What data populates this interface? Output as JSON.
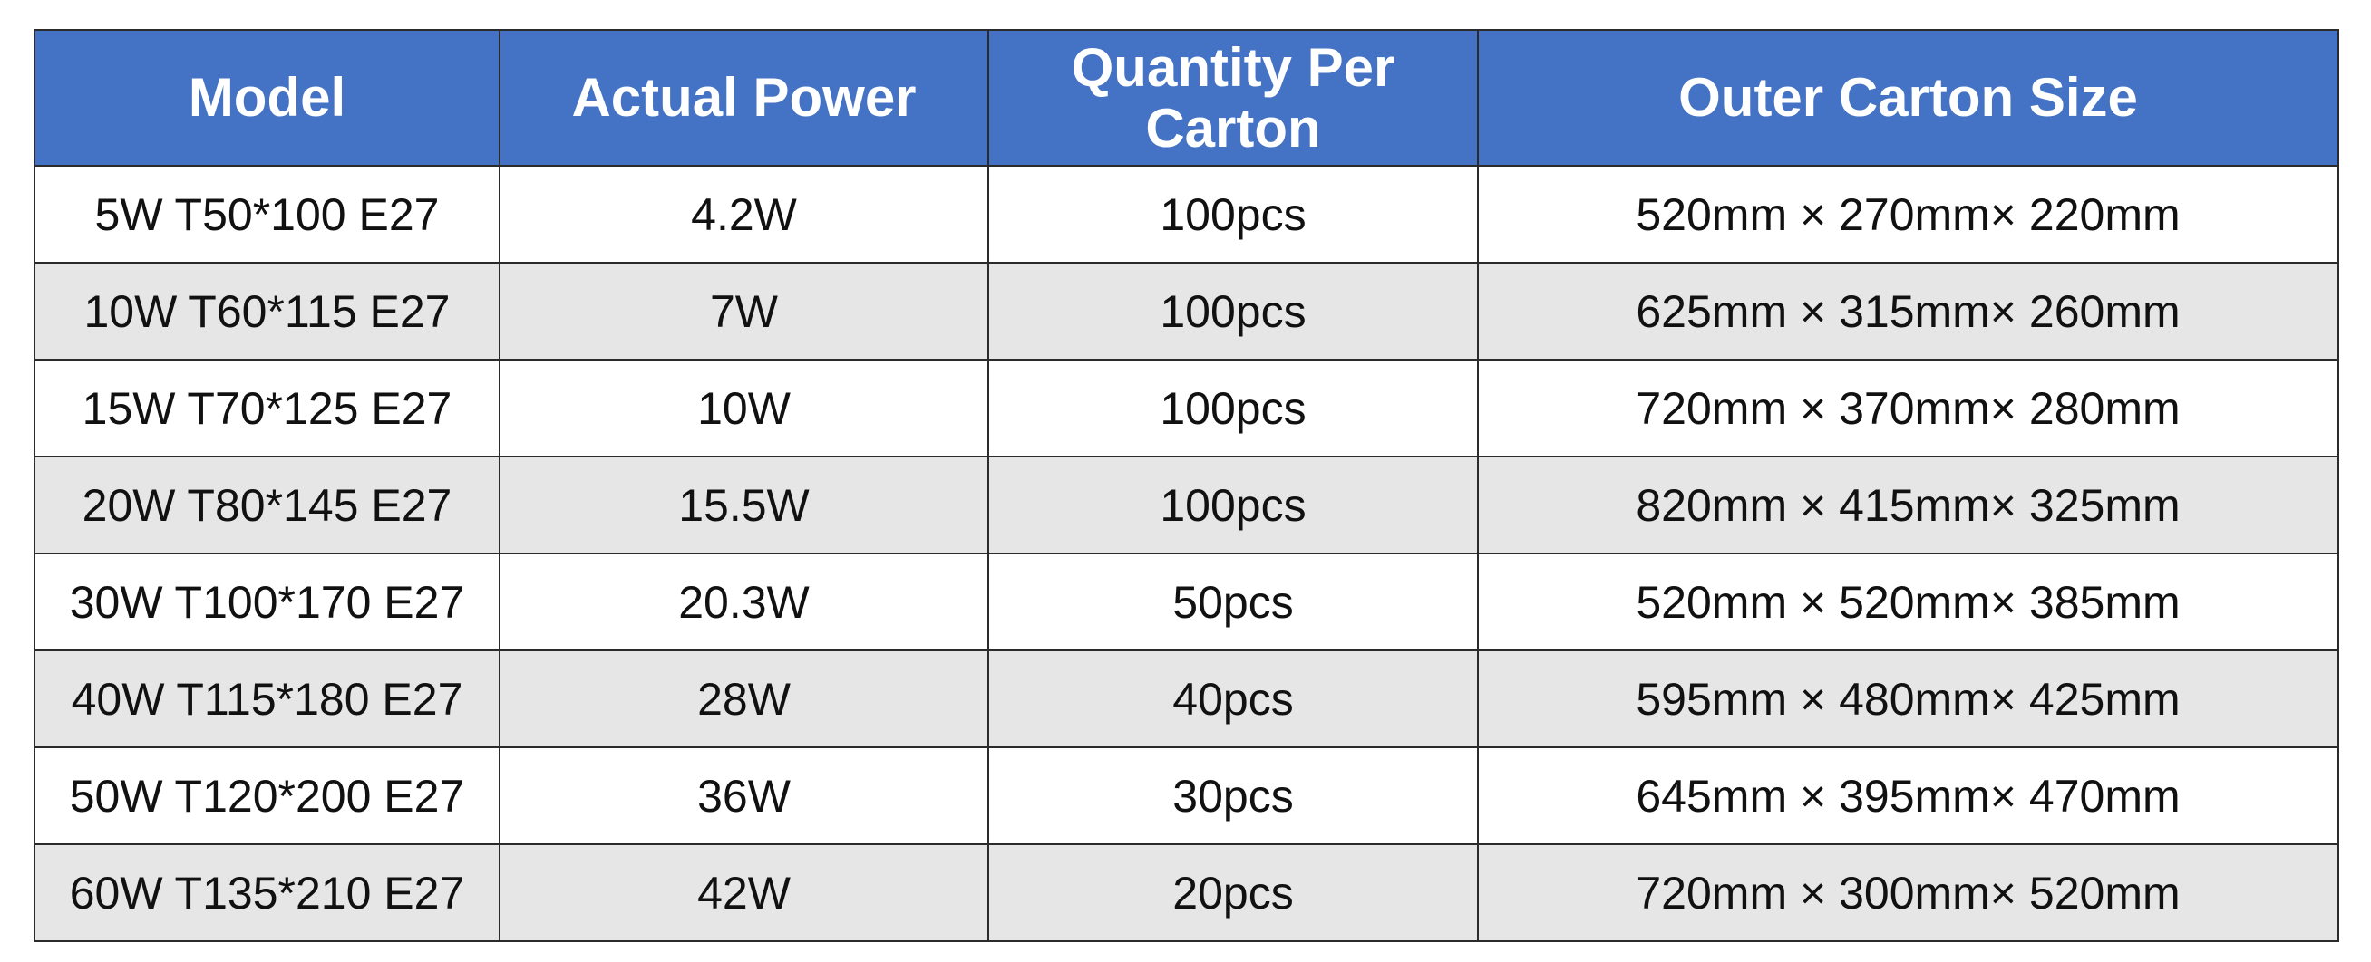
{
  "table": {
    "header": [
      "Model",
      "Actual Power",
      "Quantity Per Carton",
      "Outer Carton Size"
    ],
    "rows": [
      [
        "5W T50*100 E27",
        "4.2W",
        "100pcs",
        "520mm × 270mm× 220mm"
      ],
      [
        "10W T60*115 E27",
        "7W",
        "100pcs",
        "625mm × 315mm× 260mm"
      ],
      [
        "15W T70*125 E27",
        "10W",
        "100pcs",
        "720mm × 370mm× 280mm"
      ],
      [
        "20W T80*145 E27",
        "15.5W",
        "100pcs",
        "820mm × 415mm× 325mm"
      ],
      [
        "30W T100*170 E27",
        "20.3W",
        "50pcs",
        "520mm × 520mm× 385mm"
      ],
      [
        "40W T115*180 E27",
        "28W",
        "40pcs",
        "595mm × 480mm× 425mm"
      ],
      [
        "50W T120*200 E27",
        "36W",
        "30pcs",
        "645mm × 395mm× 470mm"
      ],
      [
        "60W T135*210 E27",
        "42W",
        "20pcs",
        "720mm × 300mm× 520mm"
      ]
    ]
  }
}
